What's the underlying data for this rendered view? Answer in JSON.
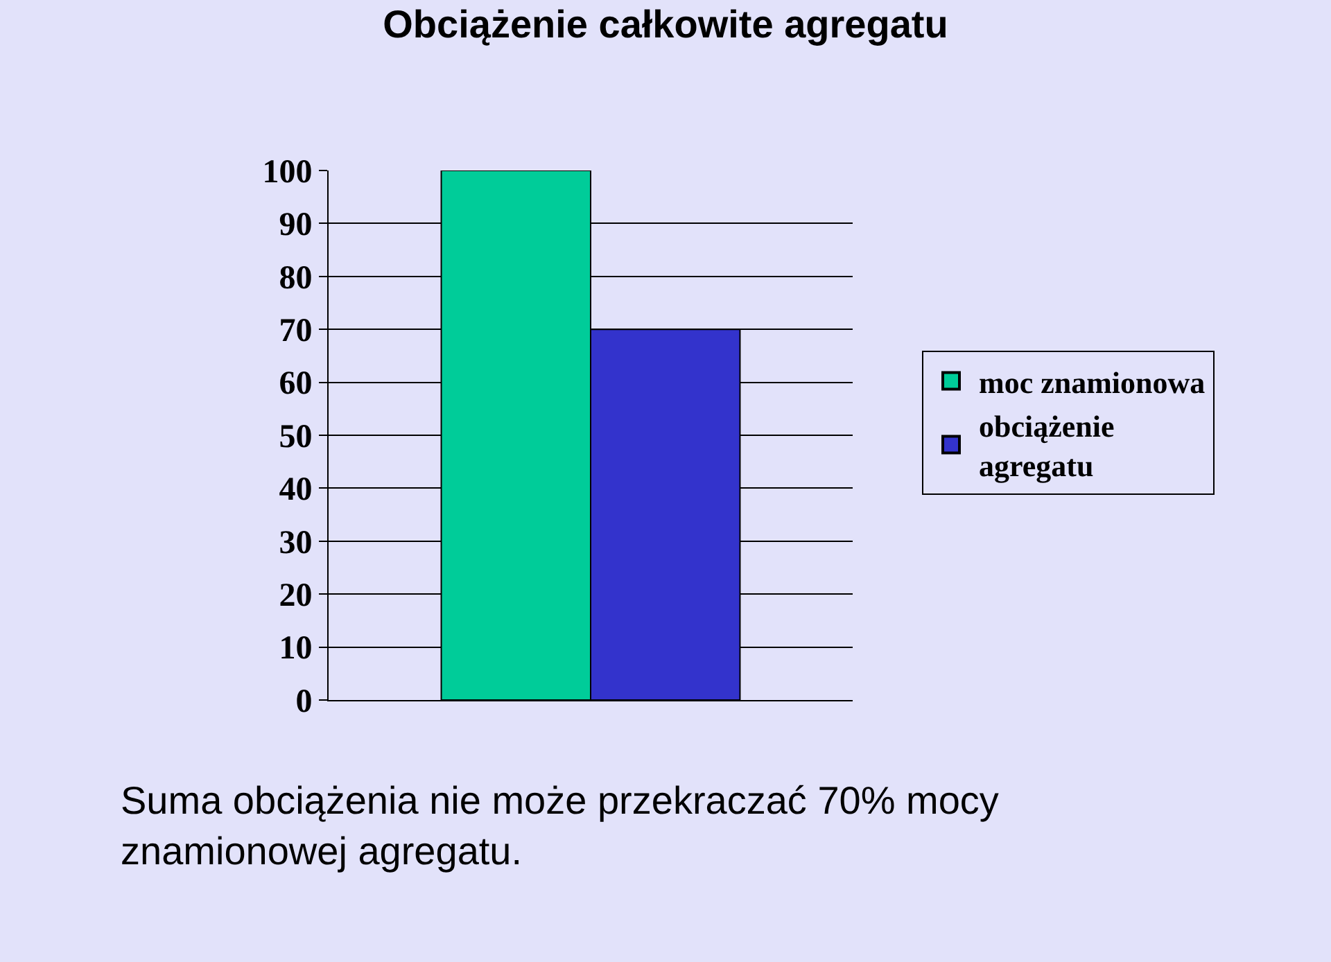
{
  "chart_data": {
    "type": "bar",
    "title": "Obciążenie całkowite agregatu",
    "categories": [
      null
    ],
    "series": [
      {
        "name": "moc znamionowa",
        "color": "#00cc99",
        "values": [
          100
        ]
      },
      {
        "name": "obciążenie agregatu",
        "color": "#3333cc",
        "values": [
          70
        ]
      }
    ],
    "ylim": [
      0,
      100
    ],
    "yticks": [
      0,
      10,
      20,
      30,
      40,
      50,
      60,
      70,
      80,
      90,
      100
    ],
    "grid": "y",
    "legend": "right",
    "annotations": [
      "Suma obciążenia nie może przekraczać 70% mocy znamionowej agregatu."
    ]
  }
}
